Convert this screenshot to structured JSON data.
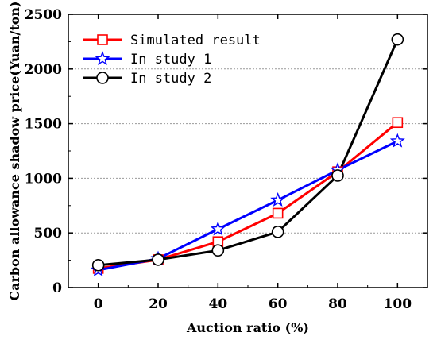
{
  "chart_data": {
    "type": "line",
    "title": "",
    "xlabel": "Auction ratio (%)",
    "ylabel": "Carbon allowance shadow price(Yuan/ton)",
    "x": [
      0,
      20,
      40,
      60,
      80,
      100
    ],
    "x_ticks": [
      "0",
      "20",
      "40",
      "60",
      "80",
      "100"
    ],
    "y_ticks": [
      "0",
      "500",
      "1000",
      "1500",
      "2000",
      "2500"
    ],
    "xlim": [
      -10,
      110
    ],
    "ylim": [
      0,
      2500
    ],
    "grid": "horizontal dotted",
    "legend_position": "top-left",
    "series": [
      {
        "name": "Simulated result",
        "color": "#ff0000",
        "marker": "square",
        "values": [
          175,
          255,
          420,
          680,
          1060,
          1510
        ]
      },
      {
        "name": "In study 1",
        "color": "#0000ff",
        "marker": "star",
        "values": [
          160,
          265,
          535,
          800,
          1075,
          1340
        ]
      },
      {
        "name": "In study 2",
        "color": "#000000",
        "marker": "circle",
        "values": [
          205,
          255,
          340,
          510,
          1025,
          2270
        ]
      }
    ]
  }
}
